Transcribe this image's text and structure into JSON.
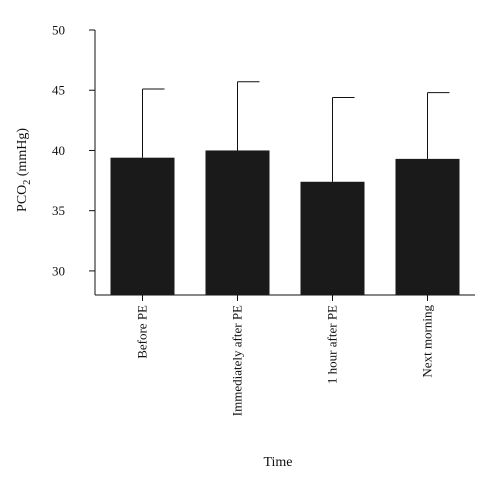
{
  "chart_data": {
    "type": "bar",
    "categories": [
      "Before PE",
      "Immediately after PE",
      "1 hour after PE",
      "Next morning"
    ],
    "values": [
      39.4,
      40.0,
      37.4,
      39.3
    ],
    "error_upper": [
      45.1,
      45.7,
      44.4,
      44.8
    ],
    "xlabel": "Time",
    "ylabel_base": "PCO",
    "ylabel_sub": "2",
    "ylabel_unit": " (mmHg)",
    "ylim": [
      28,
      50
    ],
    "yticks": [
      30,
      35,
      40,
      45,
      50
    ],
    "bar_color": "#1a1a1a",
    "grid": false
  }
}
